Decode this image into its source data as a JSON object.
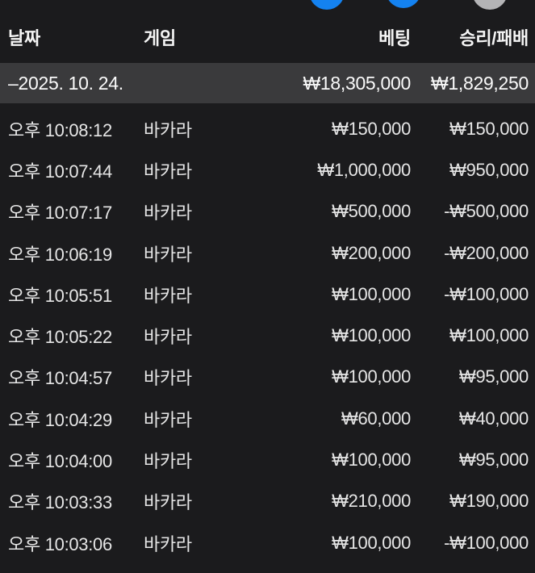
{
  "colors": {
    "background": "#1b1b1d",
    "summary_row_bg": "#3a3a3c",
    "text_primary": "#e6e6e6",
    "text_header": "#f5f5f5",
    "accent_blue": "#1482f0",
    "circle_gray": "#b4b4b6"
  },
  "top_buttons": [
    {
      "name": "blue-button-1",
      "color": "#1482f0"
    },
    {
      "name": "blue-button-2",
      "color": "#1482f0"
    },
    {
      "name": "gray-button",
      "color": "#b4b4b6"
    }
  ],
  "table": {
    "headers": {
      "date": "날짜",
      "game": "게임",
      "bet": "베팅",
      "winloss": "승리/패배"
    },
    "summary": {
      "date": "–2025. 10. 24.",
      "bet": "₩18,305,000",
      "winloss": "₩1,829,250"
    },
    "rows": [
      {
        "time": "오후 10:08:12",
        "game": "바카라",
        "bet": "₩150,000",
        "winloss": "₩150,000"
      },
      {
        "time": "오후 10:07:44",
        "game": "바카라",
        "bet": "₩1,000,000",
        "winloss": "₩950,000"
      },
      {
        "time": "오후 10:07:17",
        "game": "바카라",
        "bet": "₩500,000",
        "winloss": "-₩500,000"
      },
      {
        "time": "오후 10:06:19",
        "game": "바카라",
        "bet": "₩200,000",
        "winloss": "-₩200,000"
      },
      {
        "time": "오후 10:05:51",
        "game": "바카라",
        "bet": "₩100,000",
        "winloss": "-₩100,000"
      },
      {
        "time": "오후 10:05:22",
        "game": "바카라",
        "bet": "₩100,000",
        "winloss": "₩100,000"
      },
      {
        "time": "오후 10:04:57",
        "game": "바카라",
        "bet": "₩100,000",
        "winloss": "₩95,000"
      },
      {
        "time": "오후 10:04:29",
        "game": "바카라",
        "bet": "₩60,000",
        "winloss": "₩40,000"
      },
      {
        "time": "오후 10:04:00",
        "game": "바카라",
        "bet": "₩100,000",
        "winloss": "₩95,000"
      },
      {
        "time": "오후 10:03:33",
        "game": "바카라",
        "bet": "₩210,000",
        "winloss": "₩190,000"
      },
      {
        "time": "오후 10:03:06",
        "game": "바카라",
        "bet": "₩100,000",
        "winloss": "-₩100,000"
      }
    ]
  }
}
